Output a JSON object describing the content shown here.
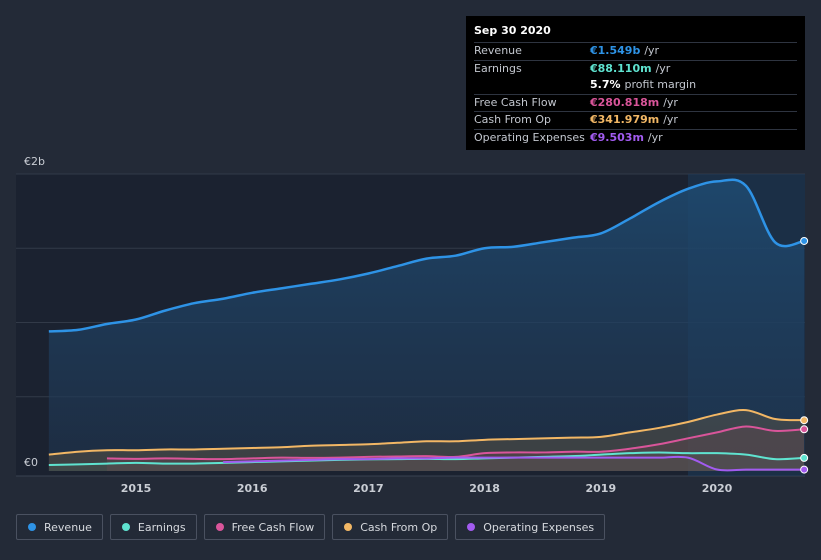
{
  "chart_data": {
    "type": "area",
    "title": "",
    "ylim": [
      0,
      2.0
    ],
    "ylabel_top": "€2b",
    "ylabel_bottom": "€0",
    "x_ticks": [
      "2015",
      "2016",
      "2017",
      "2018",
      "2019",
      "2020"
    ],
    "x": [
      2014.25,
      2014.5,
      2014.75,
      2015.0,
      2015.25,
      2015.5,
      2015.75,
      2016.0,
      2016.25,
      2016.5,
      2016.75,
      2017.0,
      2017.25,
      2017.5,
      2017.75,
      2018.0,
      2018.25,
      2018.5,
      2018.75,
      2019.0,
      2019.25,
      2019.5,
      2019.75,
      2020.0,
      2020.25,
      2020.5,
      2020.75
    ],
    "series": [
      {
        "name": "Revenue",
        "color": "#2e93e6",
        "values": [
          0.94,
          0.95,
          0.99,
          1.02,
          1.08,
          1.13,
          1.16,
          1.2,
          1.23,
          1.26,
          1.29,
          1.33,
          1.38,
          1.43,
          1.45,
          1.5,
          1.51,
          1.54,
          1.57,
          1.6,
          1.7,
          1.81,
          1.9,
          1.95,
          1.92,
          1.54,
          1.549
        ]
      },
      {
        "name": "Earnings",
        "color": "#5fe3d0",
        "values": [
          0.04,
          0.045,
          0.05,
          0.055,
          0.05,
          0.05,
          0.055,
          0.06,
          0.065,
          0.07,
          0.075,
          0.078,
          0.08,
          0.082,
          0.08,
          0.085,
          0.09,
          0.095,
          0.1,
          0.11,
          0.12,
          0.125,
          0.12,
          0.12,
          0.11,
          0.08,
          0.088
        ]
      },
      {
        "name": "Free Cash Flow",
        "color": "#d9559a",
        "start": 2014.75,
        "values": [
          null,
          null,
          0.085,
          0.082,
          0.085,
          0.082,
          0.08,
          0.085,
          0.09,
          0.088,
          0.09,
          0.095,
          0.098,
          0.1,
          0.095,
          0.12,
          0.125,
          0.125,
          0.13,
          0.13,
          0.15,
          0.18,
          0.22,
          0.26,
          0.3,
          0.27,
          0.281
        ]
      },
      {
        "name": "Cash From Op",
        "color": "#f2b765",
        "values": [
          0.11,
          0.13,
          0.14,
          0.14,
          0.145,
          0.145,
          0.15,
          0.155,
          0.16,
          0.17,
          0.175,
          0.18,
          0.19,
          0.2,
          0.2,
          0.21,
          0.215,
          0.22,
          0.225,
          0.23,
          0.26,
          0.29,
          0.33,
          0.38,
          0.41,
          0.35,
          0.342
        ]
      },
      {
        "name": "Operating Expenses",
        "color": "#a25bf0",
        "start": 2015.75,
        "values": [
          null,
          null,
          null,
          null,
          null,
          null,
          0.06,
          0.065,
          0.07,
          0.075,
          0.08,
          0.08,
          0.085,
          0.085,
          0.09,
          0.09,
          0.09,
          0.09,
          0.09,
          0.09,
          0.09,
          0.09,
          0.09,
          0.01,
          0.0095,
          0.0095,
          0.0095
        ]
      }
    ],
    "highlight_from": 2019.75,
    "legend_position": "bottom-left"
  },
  "tooltip": {
    "date": "Sep 30 2020",
    "rows": [
      {
        "label": "Revenue",
        "value": "€1.549b",
        "unit": "/yr",
        "color": "#2e93e6"
      },
      {
        "label": "Earnings",
        "value": "€88.110m",
        "unit": "/yr",
        "color": "#5fe3d0"
      },
      {
        "label": "",
        "value": "5.7%",
        "unit": "profit margin",
        "color": "#ffffff"
      },
      {
        "label": "Free Cash Flow",
        "value": "€280.818m",
        "unit": "/yr",
        "color": "#d9559a"
      },
      {
        "label": "Cash From Op",
        "value": "€341.979m",
        "unit": "/yr",
        "color": "#f2b765"
      },
      {
        "label": "Operating Expenses",
        "value": "€9.503m",
        "unit": "/yr",
        "color": "#a25bf0"
      }
    ]
  },
  "legend": [
    {
      "label": "Revenue",
      "color": "#2e93e6"
    },
    {
      "label": "Earnings",
      "color": "#5fe3d0"
    },
    {
      "label": "Free Cash Flow",
      "color": "#d9559a"
    },
    {
      "label": "Cash From Op",
      "color": "#f2b765"
    },
    {
      "label": "Operating Expenses",
      "color": "#a25bf0"
    }
  ]
}
